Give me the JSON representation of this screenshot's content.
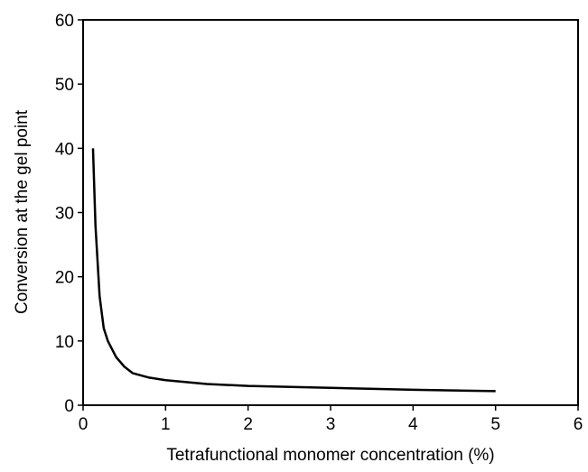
{
  "chart_data": {
    "type": "line",
    "xlabel": "Tetrafunctional monomer concentration (%)",
    "ylabel": "Conversion at the gel point",
    "x": [
      0.12,
      0.15,
      0.2,
      0.25,
      0.3,
      0.4,
      0.5,
      0.6,
      0.8,
      1,
      1.5,
      2,
      3,
      4,
      5
    ],
    "series": [
      {
        "color": "#000000",
        "values": [
          40,
          28,
          17,
          12,
          10,
          7.5,
          6,
          5,
          4.3,
          3.9,
          3.3,
          3.0,
          2.7,
          2.4,
          2.2
        ]
      }
    ],
    "xlim": [
      0,
      6
    ],
    "xticks": [
      0,
      1,
      2,
      3,
      4,
      5,
      6
    ],
    "ylim": [
      0,
      60
    ],
    "yticks": [
      0,
      10,
      20,
      30,
      40,
      50,
      60
    ],
    "grid": false
  }
}
